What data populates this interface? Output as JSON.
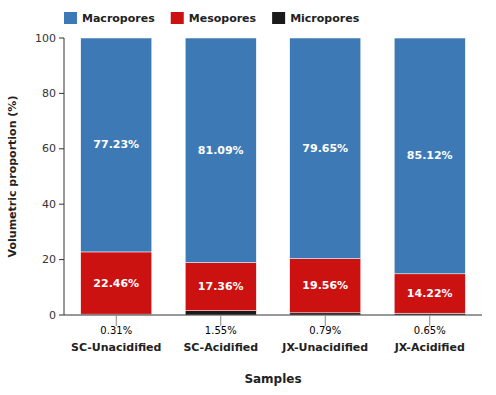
{
  "chart_data": {
    "type": "bar",
    "stacked": true,
    "categories": [
      "SC-Unacidified",
      "SC-Acidified",
      "JX-Unacidified",
      "JX-Acidified"
    ],
    "series": [
      {
        "name": "Micropores",
        "color": "#1a1a1a",
        "values": [
          0.31,
          1.55,
          0.79,
          0.65
        ],
        "value_labels": [
          "0.31%",
          "1.55%",
          "0.79%",
          "0.65%"
        ]
      },
      {
        "name": "Mesopores",
        "color": "#cc1111",
        "values": [
          22.46,
          17.36,
          19.56,
          14.22
        ],
        "value_labels": [
          "22.46%",
          "17.36%",
          "19.56%",
          "14.22%"
        ]
      },
      {
        "name": "Macropores",
        "color": "#3d7ab5",
        "values": [
          77.23,
          81.09,
          79.65,
          85.12
        ],
        "value_labels": [
          "77.23%",
          "81.09%",
          "79.65%",
          "85.12%"
        ]
      }
    ],
    "xlabel": "Samples",
    "ylabel": "Volumetric proportion (%)",
    "ylim": [
      0,
      100
    ],
    "yticks": [
      0,
      20,
      40,
      60,
      80,
      100
    ],
    "data_labels": true,
    "grid": false,
    "legend": "top"
  }
}
